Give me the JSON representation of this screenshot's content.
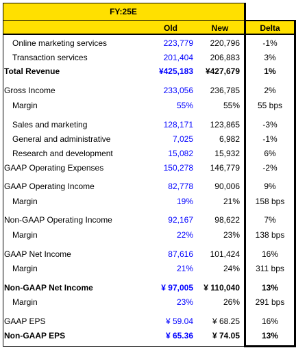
{
  "header": {
    "period": "FY:25E",
    "col_old": "Old",
    "col_new": "New",
    "col_delta": "Delta"
  },
  "rows": [
    {
      "label": "Online marketing services",
      "old": "223,779",
      "new": "220,796",
      "delta": "-1%"
    },
    {
      "label": "Transaction services",
      "old": "201,404",
      "new": "206,883",
      "delta": "3%"
    },
    {
      "label": "Total Revenue",
      "old": "¥425,183",
      "new": "¥427,679",
      "delta": "1%"
    },
    {
      "label": "Gross Income",
      "old": "233,056",
      "new": "236,785",
      "delta": "2%"
    },
    {
      "label": "Margin",
      "old": "55%",
      "new": "55%",
      "delta": "55 bps"
    },
    {
      "label": "Sales and marketing",
      "old": "128,171",
      "new": "123,865",
      "delta": "-3%"
    },
    {
      "label": "General and administrative",
      "old": "7,025",
      "new": "6,982",
      "delta": "-1%"
    },
    {
      "label": "Research and development",
      "old": "15,082",
      "new": "15,932",
      "delta": "6%"
    },
    {
      "label": "GAAP Operating Expenses",
      "old": "150,278",
      "new": "146,779",
      "delta": "-2%"
    },
    {
      "label": "GAAP Operating Income",
      "old": "82,778",
      "new": "90,006",
      "delta": "9%"
    },
    {
      "label": "Margin",
      "old": "19%",
      "new": "21%",
      "delta": "158 bps"
    },
    {
      "label": "Non-GAAP Operating Income",
      "old": "92,167",
      "new": "98,622",
      "delta": "7%"
    },
    {
      "label": "Margin",
      "old": "22%",
      "new": "23%",
      "delta": "138 bps"
    },
    {
      "label": "GAAP Net Income",
      "old": "87,616",
      "new": "101,424",
      "delta": "16%"
    },
    {
      "label": "Margin",
      "old": "21%",
      "new": "24%",
      "delta": "311 bps"
    },
    {
      "label": "Non-GAAP Net Income",
      "old": "¥ 97,005",
      "new": "¥ 110,040",
      "delta": "13%"
    },
    {
      "label": "Margin",
      "old": "23%",
      "new": "26%",
      "delta": "291 bps"
    },
    {
      "label": "GAAP EPS",
      "old": "¥ 59.04",
      "new": "¥ 68.25",
      "delta": "16%"
    },
    {
      "label": "Non-GAAP EPS",
      "old": "¥ 65.36",
      "new": "¥ 74.05",
      "delta": "13%"
    }
  ],
  "colors": {
    "header_fill": "#FFE000",
    "old_values": "#0000FF",
    "text": "#000000"
  }
}
